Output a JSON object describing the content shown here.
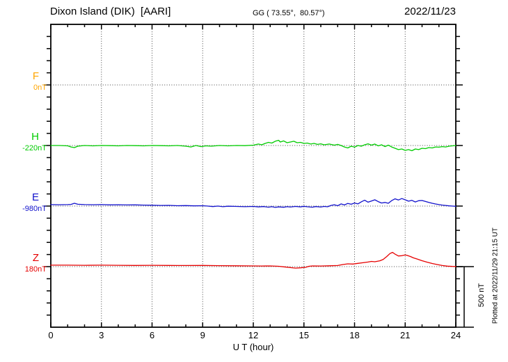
{
  "header": {
    "title": "Dixon Island (DIK)  [AARI]",
    "coords": "GG ( 73.55°,  80.57°)",
    "date": "2022/11/23"
  },
  "footer": {
    "plotted_note": "Plotted at 2022/11/29 21:15 UT"
  },
  "chart_data": {
    "type": "line",
    "title": "Dixon Island (DIK)  [AARI]",
    "station": "Dixon Island (DIK) [AARI]",
    "date": "2022/11/23",
    "xlabel": "U T (hour)",
    "x_range": [
      0,
      24
    ],
    "x_ticks": [
      0,
      3,
      6,
      9,
      12,
      15,
      18,
      21,
      24
    ],
    "grid": "dotted vertical lines every 3 hours, dotted horizontal line at each component baseline",
    "scale_bar": {
      "label": "500 nT",
      "nT": 500
    },
    "series": [
      {
        "name": "F",
        "color": "#FFA500",
        "baseline_label": "0nT",
        "baseline_nT": 0,
        "points": []
      },
      {
        "name": "H",
        "color": "#00CC00",
        "baseline_label": "-220nT",
        "baseline_nT": -220,
        "points": [
          [
            0,
            -220
          ],
          [
            0.5,
            -220
          ],
          [
            1,
            -223
          ],
          [
            1.2,
            -232
          ],
          [
            1.4,
            -237
          ],
          [
            1.6,
            -226
          ],
          [
            2,
            -220
          ],
          [
            2.5,
            -223
          ],
          [
            3,
            -220
          ],
          [
            3.5,
            -221
          ],
          [
            4,
            -223
          ],
          [
            4.5,
            -220
          ],
          [
            5,
            -221
          ],
          [
            5.5,
            -223
          ],
          [
            6,
            -220
          ],
          [
            6.5,
            -221
          ],
          [
            7,
            -223
          ],
          [
            7.5,
            -220
          ],
          [
            8,
            -226
          ],
          [
            8.3,
            -232
          ],
          [
            8.6,
            -220
          ],
          [
            8.9,
            -229
          ],
          [
            9.2,
            -223
          ],
          [
            9.5,
            -226
          ],
          [
            10,
            -220
          ],
          [
            10.5,
            -223
          ],
          [
            11,
            -220
          ],
          [
            11.5,
            -221
          ],
          [
            12,
            -217
          ],
          [
            12.3,
            -208
          ],
          [
            12.5,
            -214
          ],
          [
            12.7,
            -203
          ],
          [
            12.9,
            -194
          ],
          [
            13.1,
            -200
          ],
          [
            13.3,
            -185
          ],
          [
            13.5,
            -177
          ],
          [
            13.6,
            -191
          ],
          [
            13.8,
            -182
          ],
          [
            14,
            -197
          ],
          [
            14.2,
            -191
          ],
          [
            14.4,
            -185
          ],
          [
            14.6,
            -197
          ],
          [
            14.8,
            -194
          ],
          [
            15,
            -203
          ],
          [
            15.2,
            -200
          ],
          [
            15.4,
            -208
          ],
          [
            15.6,
            -203
          ],
          [
            15.8,
            -211
          ],
          [
            16,
            -206
          ],
          [
            16.2,
            -214
          ],
          [
            16.5,
            -208
          ],
          [
            16.8,
            -217
          ],
          [
            17,
            -211
          ],
          [
            17.2,
            -220
          ],
          [
            17.4,
            -232
          ],
          [
            17.6,
            -240
          ],
          [
            17.8,
            -226
          ],
          [
            18,
            -234
          ],
          [
            18.2,
            -220
          ],
          [
            18.4,
            -226
          ],
          [
            18.6,
            -214
          ],
          [
            18.8,
            -206
          ],
          [
            19,
            -217
          ],
          [
            19.2,
            -208
          ],
          [
            19.4,
            -223
          ],
          [
            19.6,
            -214
          ],
          [
            19.8,
            -229
          ],
          [
            20,
            -217
          ],
          [
            20.2,
            -232
          ],
          [
            20.4,
            -243
          ],
          [
            20.6,
            -254
          ],
          [
            20.8,
            -249
          ],
          [
            21,
            -260
          ],
          [
            21.2,
            -254
          ],
          [
            21.4,
            -263
          ],
          [
            21.6,
            -249
          ],
          [
            21.8,
            -254
          ],
          [
            22,
            -243
          ],
          [
            22.2,
            -246
          ],
          [
            22.4,
            -237
          ],
          [
            22.6,
            -240
          ],
          [
            22.8,
            -232
          ],
          [
            23,
            -234
          ],
          [
            23.2,
            -229
          ],
          [
            23.4,
            -232
          ],
          [
            23.6,
            -226
          ],
          [
            23.8,
            -223
          ],
          [
            24,
            -220
          ]
        ]
      },
      {
        "name": "E",
        "color": "#1111CC",
        "baseline_label": "-980nT",
        "baseline_nT": -980,
        "points": [
          [
            0,
            -968
          ],
          [
            0.5,
            -969
          ],
          [
            1,
            -968
          ],
          [
            1.2,
            -966
          ],
          [
            1.4,
            -957
          ],
          [
            1.6,
            -965
          ],
          [
            2,
            -968
          ],
          [
            2.5,
            -969
          ],
          [
            3,
            -968
          ],
          [
            3.5,
            -970
          ],
          [
            4,
            -969
          ],
          [
            4.5,
            -971
          ],
          [
            5,
            -970
          ],
          [
            5.5,
            -972
          ],
          [
            6,
            -973
          ],
          [
            6.5,
            -975
          ],
          [
            7,
            -974
          ],
          [
            7.5,
            -977
          ],
          [
            8,
            -976
          ],
          [
            8.5,
            -978
          ],
          [
            9,
            -977
          ],
          [
            9.3,
            -980
          ],
          [
            9.6,
            -984
          ],
          [
            9.9,
            -980
          ],
          [
            10.2,
            -985
          ],
          [
            10.5,
            -981
          ],
          [
            11,
            -983
          ],
          [
            11.5,
            -985
          ],
          [
            12,
            -983
          ],
          [
            12.3,
            -987
          ],
          [
            12.6,
            -984
          ],
          [
            12.9,
            -989
          ],
          [
            13.1,
            -985
          ],
          [
            13.3,
            -991
          ],
          [
            13.5,
            -987
          ],
          [
            13.8,
            -990
          ],
          [
            14,
            -985
          ],
          [
            14.2,
            -988
          ],
          [
            14.5,
            -983
          ],
          [
            14.8,
            -987
          ],
          [
            15,
            -982
          ],
          [
            15.2,
            -986
          ],
          [
            15.5,
            -989
          ],
          [
            15.7,
            -984
          ],
          [
            16,
            -988
          ],
          [
            16.2,
            -983
          ],
          [
            16.4,
            -986
          ],
          [
            16.6,
            -975
          ],
          [
            16.8,
            -969
          ],
          [
            17,
            -977
          ],
          [
            17.2,
            -962
          ],
          [
            17.4,
            -971
          ],
          [
            17.6,
            -958
          ],
          [
            17.8,
            -965
          ],
          [
            18,
            -955
          ],
          [
            18.2,
            -962
          ],
          [
            18.4,
            -945
          ],
          [
            18.6,
            -932
          ],
          [
            18.8,
            -948
          ],
          [
            19,
            -938
          ],
          [
            19.2,
            -928
          ],
          [
            19.4,
            -943
          ],
          [
            19.6,
            -955
          ],
          [
            19.8,
            -950
          ],
          [
            20,
            -957
          ],
          [
            20.2,
            -935
          ],
          [
            20.4,
            -920
          ],
          [
            20.6,
            -930
          ],
          [
            20.8,
            -918
          ],
          [
            21,
            -928
          ],
          [
            21.2,
            -940
          ],
          [
            21.4,
            -933
          ],
          [
            21.6,
            -946
          ],
          [
            21.8,
            -936
          ],
          [
            22,
            -934
          ],
          [
            22.2,
            -942
          ],
          [
            22.4,
            -950
          ],
          [
            22.6,
            -957
          ],
          [
            22.8,
            -963
          ],
          [
            23,
            -968
          ],
          [
            23.2,
            -972
          ],
          [
            23.4,
            -975
          ],
          [
            23.6,
            -978
          ],
          [
            23.8,
            -980
          ],
          [
            24,
            -982
          ]
        ]
      },
      {
        "name": "Z",
        "color": "#E60000",
        "baseline_label": "180nT",
        "baseline_nT": 180,
        "points": [
          [
            0,
            192
          ],
          [
            1,
            192
          ],
          [
            2,
            191
          ],
          [
            3,
            192
          ],
          [
            4,
            191
          ],
          [
            5,
            190
          ],
          [
            6,
            191
          ],
          [
            7,
            190
          ],
          [
            8,
            189
          ],
          [
            9,
            190
          ],
          [
            10,
            188
          ],
          [
            11,
            187
          ],
          [
            12,
            186
          ],
          [
            12.5,
            185
          ],
          [
            13,
            186
          ],
          [
            13.5,
            183
          ],
          [
            13.8,
            178
          ],
          [
            14.2,
            172
          ],
          [
            14.5,
            168
          ],
          [
            14.8,
            170
          ],
          [
            15.1,
            174
          ],
          [
            15.3,
            183
          ],
          [
            15.5,
            186
          ],
          [
            16,
            185
          ],
          [
            16.5,
            187
          ],
          [
            17,
            189
          ],
          [
            17.3,
            197
          ],
          [
            17.6,
            203
          ],
          [
            17.9,
            201
          ],
          [
            18.2,
            207
          ],
          [
            18.5,
            212
          ],
          [
            18.8,
            218
          ],
          [
            19,
            223
          ],
          [
            19.2,
            220
          ],
          [
            19.5,
            228
          ],
          [
            19.7,
            240
          ],
          [
            19.9,
            263
          ],
          [
            20.1,
            288
          ],
          [
            20.25,
            298
          ],
          [
            20.4,
            283
          ],
          [
            20.6,
            268
          ],
          [
            20.8,
            270
          ],
          [
            21,
            276
          ],
          [
            21.1,
            273
          ],
          [
            21.3,
            264
          ],
          [
            21.5,
            252
          ],
          [
            21.7,
            243
          ],
          [
            22,
            229
          ],
          [
            22.3,
            217
          ],
          [
            22.6,
            206
          ],
          [
            22.9,
            197
          ],
          [
            23.2,
            189
          ],
          [
            23.5,
            184
          ],
          [
            23.8,
            182
          ],
          [
            24,
            181
          ]
        ]
      }
    ]
  }
}
